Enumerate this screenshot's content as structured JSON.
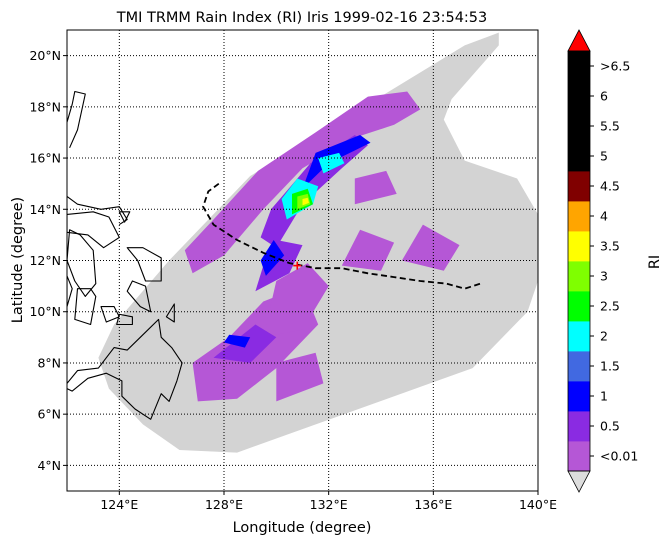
{
  "chart_data": {
    "type": "heatmap",
    "title": "TMI TRMM Rain Index (RI) Iris 1999-02-16 23:54:53",
    "xlabel": "Longitude (degree)",
    "ylabel": "Latitude (degree)",
    "xlim": [
      122,
      140
    ],
    "ylim": [
      3,
      21
    ],
    "x_ticks": [
      {
        "value": 124,
        "label": "124°E"
      },
      {
        "value": 128,
        "label": "128°E"
      },
      {
        "value": 132,
        "label": "132°E"
      },
      {
        "value": 136,
        "label": "136°E"
      },
      {
        "value": 140,
        "label": "140°E"
      }
    ],
    "y_ticks": [
      {
        "value": 4,
        "label": "4°N"
      },
      {
        "value": 6,
        "label": "6°N"
      },
      {
        "value": 8,
        "label": "8°N"
      },
      {
        "value": 10,
        "label": "10°N"
      },
      {
        "value": 12,
        "label": "12°N"
      },
      {
        "value": 14,
        "label": "14°N"
      },
      {
        "value": 16,
        "label": "16°N"
      },
      {
        "value": 18,
        "label": "18°N"
      },
      {
        "value": 20,
        "label": "20°N"
      }
    ],
    "grid": true,
    "grid_style": "dotted",
    "swath_color": "#d3d3d3",
    "swath_outline": [
      [
        126.3,
        4.6
      ],
      [
        128.5,
        4.5
      ],
      [
        137.5,
        7.8
      ],
      [
        139.6,
        10.0
      ],
      [
        140,
        11.2
      ],
      [
        140,
        13.8
      ],
      [
        139.2,
        15.2
      ],
      [
        137.2,
        15.9
      ],
      [
        136.4,
        17.5
      ],
      [
        136.7,
        18.3
      ],
      [
        138.5,
        20.4
      ],
      [
        138.5,
        20.9
      ],
      [
        137.2,
        20.4
      ],
      [
        129.0,
        15.3
      ],
      [
        125.9,
        12.0
      ],
      [
        123.8,
        9.5
      ],
      [
        123.2,
        8.2
      ],
      [
        123.6,
        7.0
      ],
      [
        124.9,
        5.6
      ]
    ],
    "colorbar": {
      "label": "RI",
      "extend": "both",
      "under_color": "#dddddd",
      "over_color": "#ff0000",
      "levels": [
        {
          "label": "<0.01",
          "color": "#b557d6"
        },
        {
          "label": "0.5",
          "color": "#8a2be2"
        },
        {
          "label": "1",
          "color": "#0000ff"
        },
        {
          "label": "1.5",
          "color": "#4169e1"
        },
        {
          "label": "2",
          "color": "#00ffff"
        },
        {
          "label": "2.5",
          "color": "#00ff00"
        },
        {
          "label": "3",
          "color": "#7fff00"
        },
        {
          "label": "3.5",
          "color": "#ffff00"
        },
        {
          "label": "4",
          "color": "#ffa500"
        },
        {
          "label": "4.5",
          "color": "#800000"
        },
        {
          "label": "5",
          "color": "#000000"
        },
        {
          "label": "5.5",
          "color": "#000000"
        },
        {
          "label": "6",
          "color": "#000000"
        },
        {
          "label": ">6.5",
          "color": "#000000"
        }
      ]
    },
    "rain_regions": [
      {
        "level": 0.1,
        "points": [
          [
            126.8,
            11.5
          ],
          [
            128.0,
            12.2
          ],
          [
            129.5,
            14.0
          ],
          [
            131.0,
            15.6
          ],
          [
            133.0,
            16.8
          ],
          [
            134.5,
            17.3
          ],
          [
            135.5,
            17.9
          ],
          [
            135.0,
            18.6
          ],
          [
            133.5,
            18.4
          ],
          [
            131.5,
            17.0
          ],
          [
            129.3,
            15.5
          ],
          [
            127.6,
            13.6
          ],
          [
            126.5,
            12.4
          ]
        ]
      },
      {
        "level": 0.1,
        "points": [
          [
            127.0,
            6.5
          ],
          [
            128.5,
            6.6
          ],
          [
            130.0,
            7.8
          ],
          [
            131.6,
            9.5
          ],
          [
            131.0,
            11.0
          ],
          [
            129.5,
            10.4
          ],
          [
            128.2,
            9.0
          ],
          [
            126.8,
            8.0
          ]
        ]
      },
      {
        "level": 0.1,
        "points": [
          [
            129.5,
            9.0
          ],
          [
            131.0,
            9.3
          ],
          [
            132.0,
            11.0
          ],
          [
            131.2,
            11.9
          ],
          [
            130.0,
            11.2
          ]
        ]
      },
      {
        "level": 0.1,
        "points": [
          [
            132.5,
            11.8
          ],
          [
            134.0,
            11.6
          ],
          [
            134.5,
            12.7
          ],
          [
            133.2,
            13.2
          ]
        ]
      },
      {
        "level": 0.1,
        "points": [
          [
            134.8,
            12.0
          ],
          [
            136.4,
            11.6
          ],
          [
            137.0,
            12.6
          ],
          [
            135.6,
            13.4
          ]
        ]
      },
      {
        "level": 0.1,
        "points": [
          [
            133.0,
            14.2
          ],
          [
            134.6,
            14.6
          ],
          [
            134.2,
            15.5
          ],
          [
            133.0,
            15.2
          ]
        ]
      },
      {
        "level": 0.1,
        "points": [
          [
            130.0,
            6.5
          ],
          [
            131.8,
            7.2
          ],
          [
            131.5,
            8.4
          ],
          [
            130.0,
            8.0
          ]
        ]
      },
      {
        "level": 0.6,
        "points": [
          [
            130.0,
            12.5
          ],
          [
            131.0,
            14.2
          ],
          [
            132.5,
            15.6
          ],
          [
            133.5,
            16.5
          ],
          [
            133.0,
            16.9
          ],
          [
            131.3,
            15.8
          ],
          [
            129.8,
            14.0
          ],
          [
            129.4,
            12.9
          ]
        ]
      },
      {
        "level": 0.6,
        "points": [
          [
            127.6,
            8.2
          ],
          [
            129.0,
            8.0
          ],
          [
            130.0,
            9.0
          ],
          [
            129.2,
            9.5
          ]
        ]
      },
      {
        "level": 0.6,
        "points": [
          [
            129.2,
            10.8
          ],
          [
            130.5,
            11.5
          ],
          [
            131.0,
            12.6
          ],
          [
            130.0,
            12.8
          ],
          [
            129.5,
            11.8
          ]
        ]
      },
      {
        "level": 1.2,
        "points": [
          [
            131.0,
            14.8
          ],
          [
            132.0,
            15.8
          ],
          [
            133.6,
            16.6
          ],
          [
            133.2,
            16.9
          ],
          [
            131.5,
            16.2
          ]
        ]
      },
      {
        "level": 1.2,
        "points": [
          [
            129.6,
            11.4
          ],
          [
            130.3,
            12.2
          ],
          [
            129.9,
            12.8
          ],
          [
            129.4,
            12.0
          ]
        ]
      },
      {
        "level": 1.2,
        "points": [
          [
            128.0,
            8.8
          ],
          [
            128.8,
            8.6
          ],
          [
            129.0,
            9.0
          ],
          [
            128.2,
            9.1
          ]
        ]
      },
      {
        "level": 2.2,
        "points": [
          [
            130.4,
            13.6
          ],
          [
            131.4,
            14.2
          ],
          [
            131.6,
            14.9
          ],
          [
            130.8,
            15.2
          ],
          [
            130.2,
            14.4
          ]
        ]
      },
      {
        "level": 2.2,
        "points": [
          [
            131.8,
            15.4
          ],
          [
            132.6,
            15.8
          ],
          [
            132.4,
            16.2
          ],
          [
            131.6,
            16.0
          ]
        ]
      },
      {
        "level": 2.7,
        "points": [
          [
            130.6,
            13.8
          ],
          [
            131.4,
            14.2
          ],
          [
            131.2,
            14.8
          ],
          [
            130.6,
            14.6
          ]
        ]
      },
      {
        "level": 3.2,
        "points": [
          [
            130.8,
            14.0
          ],
          [
            131.3,
            14.2
          ],
          [
            131.2,
            14.6
          ],
          [
            130.8,
            14.5
          ]
        ]
      },
      {
        "level": 3.7,
        "points": [
          [
            131.0,
            14.15
          ],
          [
            131.25,
            14.25
          ],
          [
            131.2,
            14.45
          ],
          [
            131.0,
            14.4
          ]
        ]
      }
    ],
    "track": [
      [
        127.8,
        15.0
      ],
      [
        127.4,
        14.7
      ],
      [
        127.2,
        14.1
      ],
      [
        127.6,
        13.4
      ],
      [
        128.5,
        12.8
      ],
      [
        129.5,
        12.3
      ],
      [
        130.5,
        11.9
      ],
      [
        131.5,
        11.7
      ],
      [
        132.5,
        11.7
      ],
      [
        133.5,
        11.5
      ],
      [
        134.5,
        11.35
      ],
      [
        135.5,
        11.2
      ],
      [
        136.5,
        11.1
      ],
      [
        137.2,
        10.9
      ],
      [
        137.8,
        11.1
      ]
    ],
    "storm_center": [
      130.8,
      11.8
    ]
  },
  "coastlines": [
    {
      "closed": true,
      "points": [
        [
          122.7,
          10.6
        ],
        [
          123.1,
          11.1
        ],
        [
          123.0,
          12.4
        ],
        [
          122.5,
          13.0
        ],
        [
          122.1,
          13.2
        ],
        [
          122.0,
          12.0
        ],
        [
          122.3,
          11.2
        ]
      ]
    },
    {
      "closed": true,
      "points": [
        [
          122.0,
          13.8
        ],
        [
          123.0,
          13.9
        ],
        [
          123.6,
          13.7
        ],
        [
          124.0,
          12.9
        ],
        [
          123.4,
          12.5
        ],
        [
          122.8,
          13.0
        ],
        [
          122.0,
          13.1
        ]
      ]
    },
    {
      "closed": true,
      "points": [
        [
          124.3,
          12.5
        ],
        [
          124.7,
          12.0
        ],
        [
          125.0,
          11.2
        ],
        [
          125.6,
          11.2
        ],
        [
          125.6,
          12.1
        ],
        [
          124.9,
          12.5
        ]
      ]
    },
    {
      "closed": true,
      "points": [
        [
          124.5,
          11.2
        ],
        [
          125.0,
          11.0
        ],
        [
          125.2,
          10.0
        ],
        [
          124.8,
          10.2
        ],
        [
          124.3,
          10.8
        ]
      ]
    },
    {
      "closed": true,
      "points": [
        [
          123.8,
          10.2
        ],
        [
          124.0,
          9.8
        ],
        [
          123.5,
          9.6
        ],
        [
          123.3,
          10.2
        ]
      ]
    },
    {
      "closed": true,
      "points": [
        [
          123.9,
          9.5
        ],
        [
          124.5,
          9.5
        ],
        [
          124.5,
          9.8
        ],
        [
          124.0,
          9.9
        ]
      ]
    },
    {
      "closed": true,
      "points": [
        [
          122.4,
          10.9
        ],
        [
          122.9,
          10.9
        ],
        [
          123.1,
          10.6
        ],
        [
          122.9,
          9.5
        ],
        [
          122.3,
          9.7
        ]
      ]
    },
    {
      "closed": true,
      "points": [
        [
          122.0,
          10.2
        ],
        [
          122.2,
          10.9
        ],
        [
          122.0,
          11.4
        ]
      ]
    },
    {
      "closed": false,
      "points": [
        [
          122.0,
          7.2
        ],
        [
          122.4,
          7.7
        ],
        [
          123.2,
          7.8
        ],
        [
          123.8,
          8.6
        ],
        [
          124.3,
          8.5
        ],
        [
          124.8,
          9.0
        ],
        [
          125.5,
          9.7
        ],
        [
          125.6,
          9.0
        ],
        [
          126.0,
          8.6
        ],
        [
          126.4,
          8.0
        ],
        [
          126.2,
          7.3
        ],
        [
          125.9,
          6.5
        ],
        [
          125.6,
          6.8
        ],
        [
          125.2,
          5.8
        ],
        [
          124.6,
          6.2
        ],
        [
          124.1,
          6.7
        ],
        [
          124.1,
          7.3
        ],
        [
          123.5,
          7.6
        ],
        [
          122.8,
          7.4
        ],
        [
          122.2,
          6.9
        ],
        [
          122.0,
          7.0
        ]
      ]
    },
    {
      "closed": true,
      "points": [
        [
          125.8,
          9.8
        ],
        [
          126.1,
          10.3
        ],
        [
          126.1,
          9.6
        ]
      ]
    },
    {
      "closed": false,
      "points": [
        [
          122.0,
          14.5
        ],
        [
          122.4,
          14.2
        ],
        [
          123.3,
          14.0
        ],
        [
          124.0,
          14.1
        ],
        [
          124.3,
          13.6
        ],
        [
          124.0,
          13.4
        ]
      ]
    },
    {
      "closed": false,
      "points": [
        [
          122.0,
          17.4
        ],
        [
          122.2,
          18.1
        ],
        [
          122.3,
          18.6
        ],
        [
          122.7,
          18.5
        ],
        [
          122.4,
          17.1
        ],
        [
          122.1,
          16.4
        ]
      ]
    },
    {
      "closed": true,
      "points": [
        [
          124.0,
          13.9
        ],
        [
          124.4,
          13.9
        ],
        [
          124.2,
          13.5
        ]
      ]
    }
  ]
}
